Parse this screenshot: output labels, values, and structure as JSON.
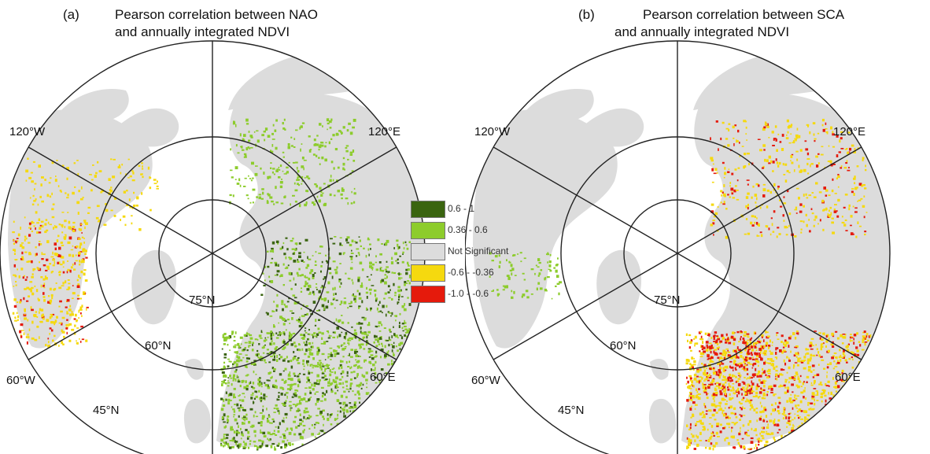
{
  "panels": [
    {
      "tag": "(a)",
      "title_line1": "Pearson correlation between NAO",
      "title_line2": "and annually integrated NDVI",
      "pattern": "positive-eurasia",
      "labels": {
        "w120": "120°W",
        "e120": "120°E",
        "w60": "60°W",
        "e60": "60°E",
        "n75": "75°N",
        "n60": "60°N",
        "n45": "45°N"
      }
    },
    {
      "tag": "(b)",
      "title_line1": "Pearson correlation between SCA",
      "title_line2": "and annually integrated NDVI",
      "pattern": "negative-eurasia",
      "labels": {
        "w120": "120°W",
        "e120": "120°E",
        "w60": "60°W",
        "e60": "60°E",
        "n75": "75°N",
        "n60": "60°N",
        "n45": "45°N"
      }
    }
  ],
  "legend": [
    {
      "label": "0.6 - 1",
      "color": "#3a6410"
    },
    {
      "label": "0.36 - 0.6",
      "color": "#8dcc2c"
    },
    {
      "label": "Not Significant",
      "color": "#dcdcdc"
    },
    {
      "label": "-0.6 - -0.36",
      "color": "#f5d90f"
    },
    {
      "label": "-1.0 - -0.6",
      "color": "#e51a0c"
    }
  ],
  "colors": {
    "land": "#dcdcdc",
    "grid": "#222222"
  }
}
